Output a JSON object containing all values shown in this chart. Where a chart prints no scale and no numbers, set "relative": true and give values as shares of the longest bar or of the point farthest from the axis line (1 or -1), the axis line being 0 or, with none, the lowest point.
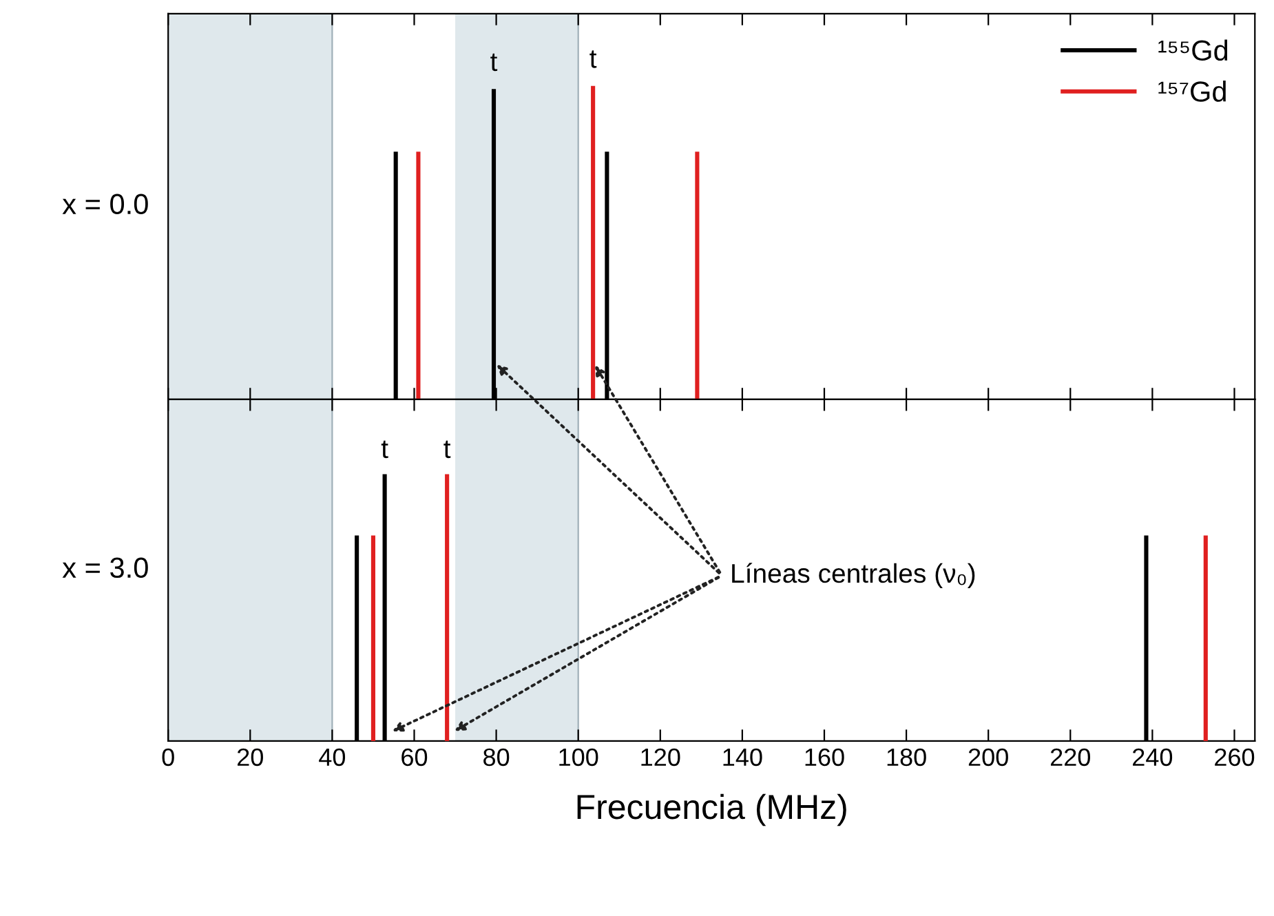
{
  "chart_data": [
    {
      "type": "bar",
      "relative": true,
      "ylabel": "x = 0.0",
      "xlim": [
        0,
        265
      ],
      "xticks": [
        0,
        20,
        40,
        60,
        80,
        100,
        120,
        140,
        160,
        180,
        200,
        220,
        240,
        260
      ],
      "tick_labels": false,
      "legend": "top right",
      "series": [
        {
          "name": "¹⁵⁵Gd",
          "color": "#000000",
          "x": [
            55.5,
            79.4,
            107
          ],
          "values": [
            0.79,
            0.99,
            0.79
          ]
        },
        {
          "name": "¹⁵⁷Gd",
          "color": "#e02020",
          "x": [
            61,
            103.6,
            129
          ],
          "values": [
            0.79,
            1.0,
            0.79
          ]
        }
      ],
      "bands": [
        {
          "axis": "x",
          "from": 0,
          "to": 40,
          "color": "#dfe8ec"
        },
        {
          "axis": "x",
          "from": 70,
          "to": 100,
          "color": "#dfe8ec"
        }
      ],
      "annotations": [
        "t",
        "t"
      ]
    },
    {
      "type": "bar",
      "relative": true,
      "ylabel": "x = 3.0",
      "xlabel": "Frecuencia (MHz)",
      "xlim": [
        0,
        265
      ],
      "xticks": [
        0,
        20,
        40,
        60,
        80,
        100,
        120,
        140,
        160,
        180,
        200,
        220,
        240,
        260
      ],
      "tick_labels": "x",
      "series": [
        {
          "color": "#000000",
          "x": [
            46,
            52.8,
            238.5
          ],
          "values": [
            0.77,
            1.0,
            0.77
          ]
        },
        {
          "color": "#e02020",
          "x": [
            50,
            68,
            253
          ],
          "values": [
            0.77,
            1.0,
            0.77
          ]
        }
      ],
      "bands": [
        {
          "axis": "x",
          "from": 0,
          "to": 40,
          "color": "#dfe8ec"
        },
        {
          "axis": "x",
          "from": 70,
          "to": 100,
          "color": "#dfe8ec"
        }
      ],
      "annotations": [
        "t",
        "t",
        "Líneas centrales (ν₀)"
      ]
    }
  ]
}
